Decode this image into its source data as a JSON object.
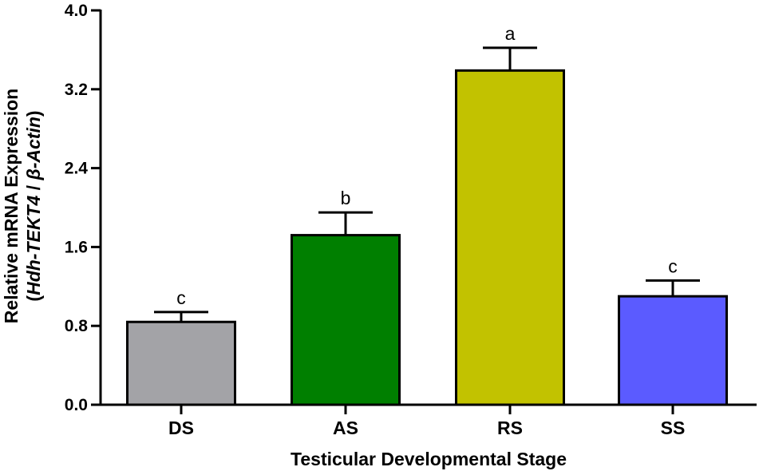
{
  "chart_data": {
    "type": "bar",
    "categories": [
      "DS",
      "AS",
      "RS",
      "SS"
    ],
    "values": [
      0.84,
      1.72,
      3.39,
      1.1
    ],
    "errors": [
      0.1,
      0.23,
      0.23,
      0.16
    ],
    "significance": [
      "c",
      "b",
      "a",
      "c"
    ],
    "colors": [
      "#a3a3a7",
      "#007f00",
      "#c2c200",
      "#5b5bff"
    ],
    "xlabel": "Testicular Developmental Stage",
    "ylabel": "Relative mRNA Expression",
    "ylabel_sub": {
      "open": "(",
      "gene": "Hdh-TEKT4",
      "sep": " / ",
      "greek": "β",
      "ref": "-Actin",
      "close": ")"
    },
    "ylim": [
      0,
      4.0
    ],
    "yticks": [
      "0.0",
      "0.8",
      "1.6",
      "2.4",
      "3.2",
      "4.0"
    ],
    "grid": false
  }
}
